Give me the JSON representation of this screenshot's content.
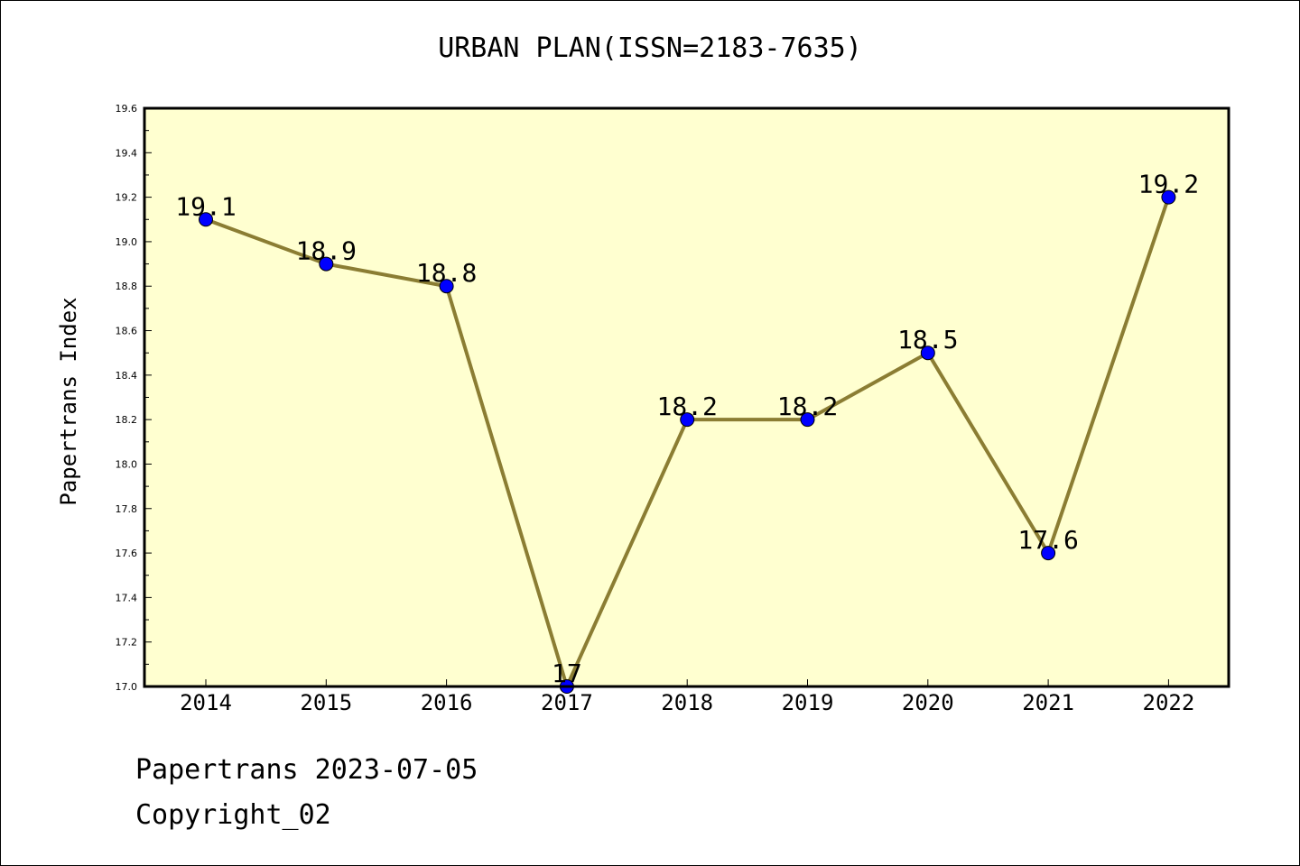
{
  "chart_data": {
    "type": "line",
    "title": "URBAN PLAN(ISSN=2183-7635)",
    "ylabel": "Papertrans Index",
    "xlabel": "",
    "categories": [
      "2014",
      "2015",
      "2016",
      "2017",
      "2018",
      "2019",
      "2020",
      "2021",
      "2022"
    ],
    "values": [
      19.1,
      18.9,
      18.8,
      17.0,
      18.2,
      18.2,
      18.5,
      17.6,
      19.2
    ],
    "data_labels": [
      "19.1",
      "18.9",
      "18.8",
      "17",
      "18.2",
      "18.2",
      "18.5",
      "17.6",
      "19.2"
    ],
    "ylim": [
      17.0,
      19.6
    ],
    "yticks": [
      "17.0",
      "17.2",
      "17.4",
      "17.6",
      "17.8",
      "18.0",
      "18.2",
      "18.4",
      "18.6",
      "18.8",
      "19.0",
      "19.2",
      "19.4",
      "19.6"
    ],
    "grid": false,
    "colors": {
      "plot_background": "#ffffd0",
      "line": "#8b7d33",
      "marker": "#0000ff"
    }
  },
  "footer": {
    "line1": "Papertrans 2023-07-05",
    "line2": "Copyright_02"
  }
}
